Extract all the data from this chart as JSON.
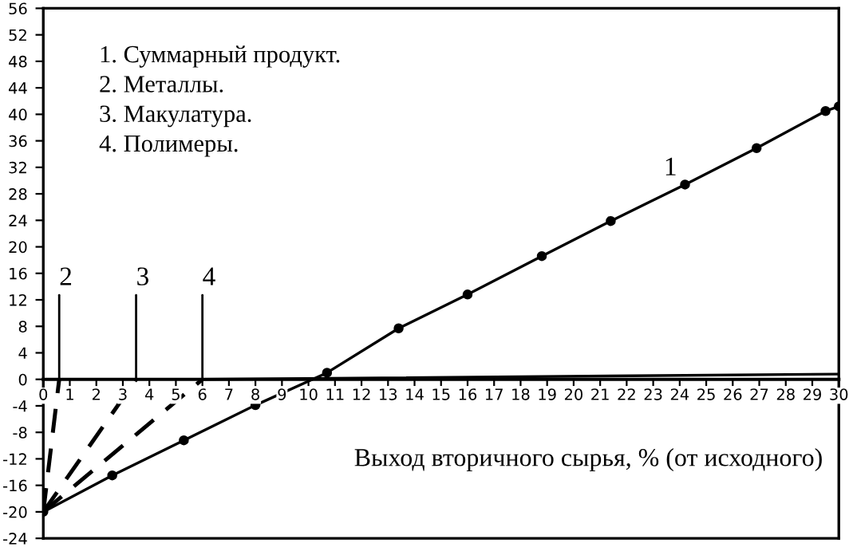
{
  "chart_data": {
    "type": "line",
    "xlabel": "Выход вторичного сырья, % (от исходного)",
    "xlim": [
      0,
      30
    ],
    "xticks": [
      0,
      1,
      2,
      3,
      4,
      5,
      6,
      7,
      8,
      9,
      10,
      11,
      12,
      13,
      14,
      15,
      16,
      17,
      18,
      19,
      20,
      21,
      22,
      23,
      24,
      25,
      26,
      27,
      28,
      29,
      30
    ],
    "ylim": [
      -24,
      56
    ],
    "yticks": [
      -24,
      -20,
      -16,
      -12,
      -8,
      -4,
      0,
      4,
      8,
      12,
      16,
      20,
      24,
      28,
      32,
      36,
      40,
      44,
      48,
      52,
      56
    ],
    "grid": false,
    "series": [
      {
        "color": "#000000",
        "marker": "circle",
        "line_style": "solid",
        "x": [
          0,
          2.6,
          5.3,
          8,
          10.7,
          13.4,
          16,
          18.8,
          21.4,
          24.2,
          26.9,
          29.5,
          30
        ],
        "values": [
          -20,
          -14.5,
          -9.2,
          -3.9,
          1,
          7.7,
          12.8,
          18.6,
          23.9,
          29.4,
          34.9,
          40.5,
          41.2
        ]
      },
      {
        "color": "#000000",
        "marker": "none",
        "line_style": "dashed",
        "x": [
          0,
          0.6
        ],
        "values": [
          -20,
          0
        ]
      },
      {
        "color": "#000000",
        "marker": "none",
        "line_style": "dashed",
        "x": [
          0,
          3.5
        ],
        "values": [
          -20,
          0
        ]
      },
      {
        "color": "#000000",
        "marker": "none",
        "line_style": "dashed",
        "x": [
          0,
          6
        ],
        "values": [
          -20,
          0
        ]
      },
      {
        "color": "#000000",
        "marker": "none",
        "line_style": "solid",
        "x": [
          6,
          30
        ],
        "values": [
          0,
          0.8
        ]
      }
    ],
    "annotations": [
      "1. Суммарный продукт.\n2. Металлы.\n3. Макулатура.\n4. Полимеры.",
      "1",
      {
        "text": "2",
        "x": 0.6,
        "y": 0
      },
      {
        "text": "3",
        "x": 3.5,
        "y": 0
      },
      {
        "text": "4",
        "x": 6,
        "y": 0
      }
    ]
  }
}
